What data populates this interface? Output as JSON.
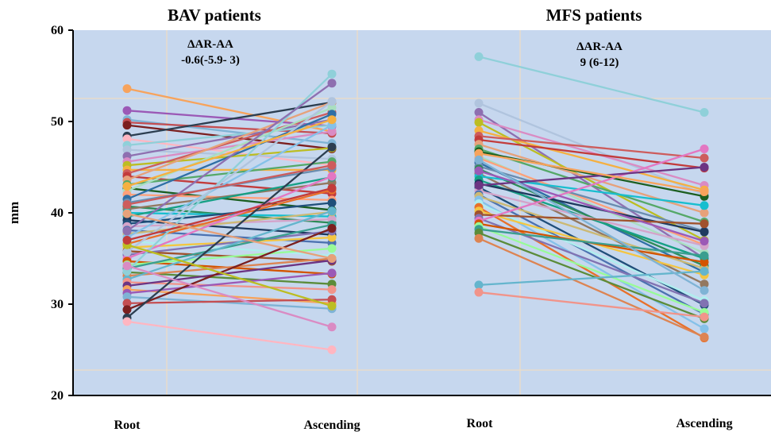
{
  "chart_data": {
    "type": "line",
    "ylabel": "mm",
    "ylim": [
      20,
      60
    ],
    "yticks": [
      20,
      30,
      40,
      50,
      60
    ],
    "grid": true,
    "colors": {
      "panel_bg": "#c6d7ee",
      "grid": "#e7dccb",
      "axis": "#000000"
    },
    "panels": [
      {
        "title": "BAV patients",
        "categories": [
          "Root",
          "Ascending"
        ],
        "annotation_lines": [
          "ΔAR-AA",
          "-0.6(-5.9- 3)"
        ],
        "pairs": [
          [
            53.6,
            48.9
          ],
          [
            51.2,
            49.5
          ],
          [
            50.2,
            47.6
          ],
          [
            49.9,
            48.7
          ],
          [
            49.6,
            47.0
          ],
          [
            48.4,
            52.1
          ],
          [
            48.1,
            45.2
          ],
          [
            47.4,
            49.6
          ],
          [
            46.9,
            45.9
          ],
          [
            46.2,
            50.2
          ],
          [
            45.6,
            48.9
          ],
          [
            45.2,
            47.1
          ],
          [
            44.7,
            44.7
          ],
          [
            44.3,
            51.0
          ],
          [
            44.0,
            42.1
          ],
          [
            43.6,
            52.1
          ],
          [
            43.1,
            45.6
          ],
          [
            42.7,
            40.3
          ],
          [
            42.4,
            51.5
          ],
          [
            42.0,
            41.4
          ],
          [
            41.5,
            50.8
          ],
          [
            41.1,
            44.9
          ],
          [
            40.7,
            38.9
          ],
          [
            40.4,
            43.3
          ],
          [
            40.0,
            39.6
          ],
          [
            39.6,
            43.9
          ],
          [
            39.2,
            37.6
          ],
          [
            38.8,
            41.1
          ],
          [
            38.5,
            39.3
          ],
          [
            38.1,
            36.7
          ],
          [
            37.7,
            40.1
          ],
          [
            37.3,
            49.6
          ],
          [
            36.9,
            35.3
          ],
          [
            36.6,
            42.5
          ],
          [
            36.2,
            37.3
          ],
          [
            35.8,
            34.7
          ],
          [
            35.4,
            38.0
          ],
          [
            35.0,
            44.0
          ],
          [
            34.7,
            33.3
          ],
          [
            34.3,
            36.1
          ],
          [
            33.9,
            38.7
          ],
          [
            33.5,
            32.2
          ],
          [
            33.1,
            35.0
          ],
          [
            32.7,
            40.2
          ],
          [
            32.4,
            31.6
          ],
          [
            32.0,
            34.8
          ],
          [
            31.6,
            30.1
          ],
          [
            31.2,
            33.4
          ],
          [
            30.8,
            29.5
          ],
          [
            30.1,
            30.5
          ],
          [
            29.4,
            38.3
          ],
          [
            28.5,
            47.2
          ],
          [
            28.1,
            25.0
          ],
          [
            33.6,
            55.2
          ],
          [
            35.7,
            52.2
          ],
          [
            38.0,
            54.2
          ],
          [
            34.2,
            27.5
          ],
          [
            36.5,
            29.8
          ],
          [
            42.9,
            50.2
          ],
          [
            40.9,
            45.2
          ],
          [
            37.0,
            42.7
          ],
          [
            39.9,
            35.0
          ]
        ]
      },
      {
        "title": "MFS patients",
        "categories": [
          "Root",
          "Ascending"
        ],
        "annotation_lines": [
          "ΔAR-AA",
          "9 (6-12)"
        ],
        "pairs": [
          [
            57.1,
            51.0
          ],
          [
            52.0,
            42.0
          ],
          [
            51.0,
            35.0
          ],
          [
            50.2,
            43.0
          ],
          [
            49.9,
            37.0
          ],
          [
            49.0,
            42.5
          ],
          [
            48.4,
            46.0
          ],
          [
            48.0,
            44.9
          ],
          [
            47.5,
            40.0
          ],
          [
            47.0,
            39.0
          ],
          [
            46.7,
            41.8
          ],
          [
            46.2,
            35.6
          ],
          [
            46.0,
            36.5
          ],
          [
            45.5,
            33.5
          ],
          [
            45.1,
            38.0
          ],
          [
            44.8,
            34.2
          ],
          [
            44.3,
            32.2
          ],
          [
            44.0,
            40.8
          ],
          [
            43.6,
            35.0
          ],
          [
            43.2,
            37.9
          ],
          [
            42.8,
            29.9
          ],
          [
            42.4,
            36.4
          ],
          [
            42.0,
            28.9
          ],
          [
            41.8,
            33.9
          ],
          [
            41.4,
            27.3
          ],
          [
            41.0,
            30.4
          ],
          [
            40.6,
            26.3
          ],
          [
            40.2,
            33.2
          ],
          [
            39.8,
            38.8
          ],
          [
            39.4,
            30.1
          ],
          [
            39.1,
            47.0
          ],
          [
            38.8,
            34.6
          ],
          [
            38.5,
            29.1
          ],
          [
            38.2,
            35.3
          ],
          [
            37.8,
            28.4
          ],
          [
            37.2,
            26.4
          ],
          [
            32.1,
            33.6
          ],
          [
            31.3,
            28.6
          ],
          [
            43.0,
            45.0
          ],
          [
            46.5,
            42.3
          ],
          [
            44.6,
            36.9
          ],
          [
            45.8,
            31.5
          ]
        ]
      }
    ]
  }
}
